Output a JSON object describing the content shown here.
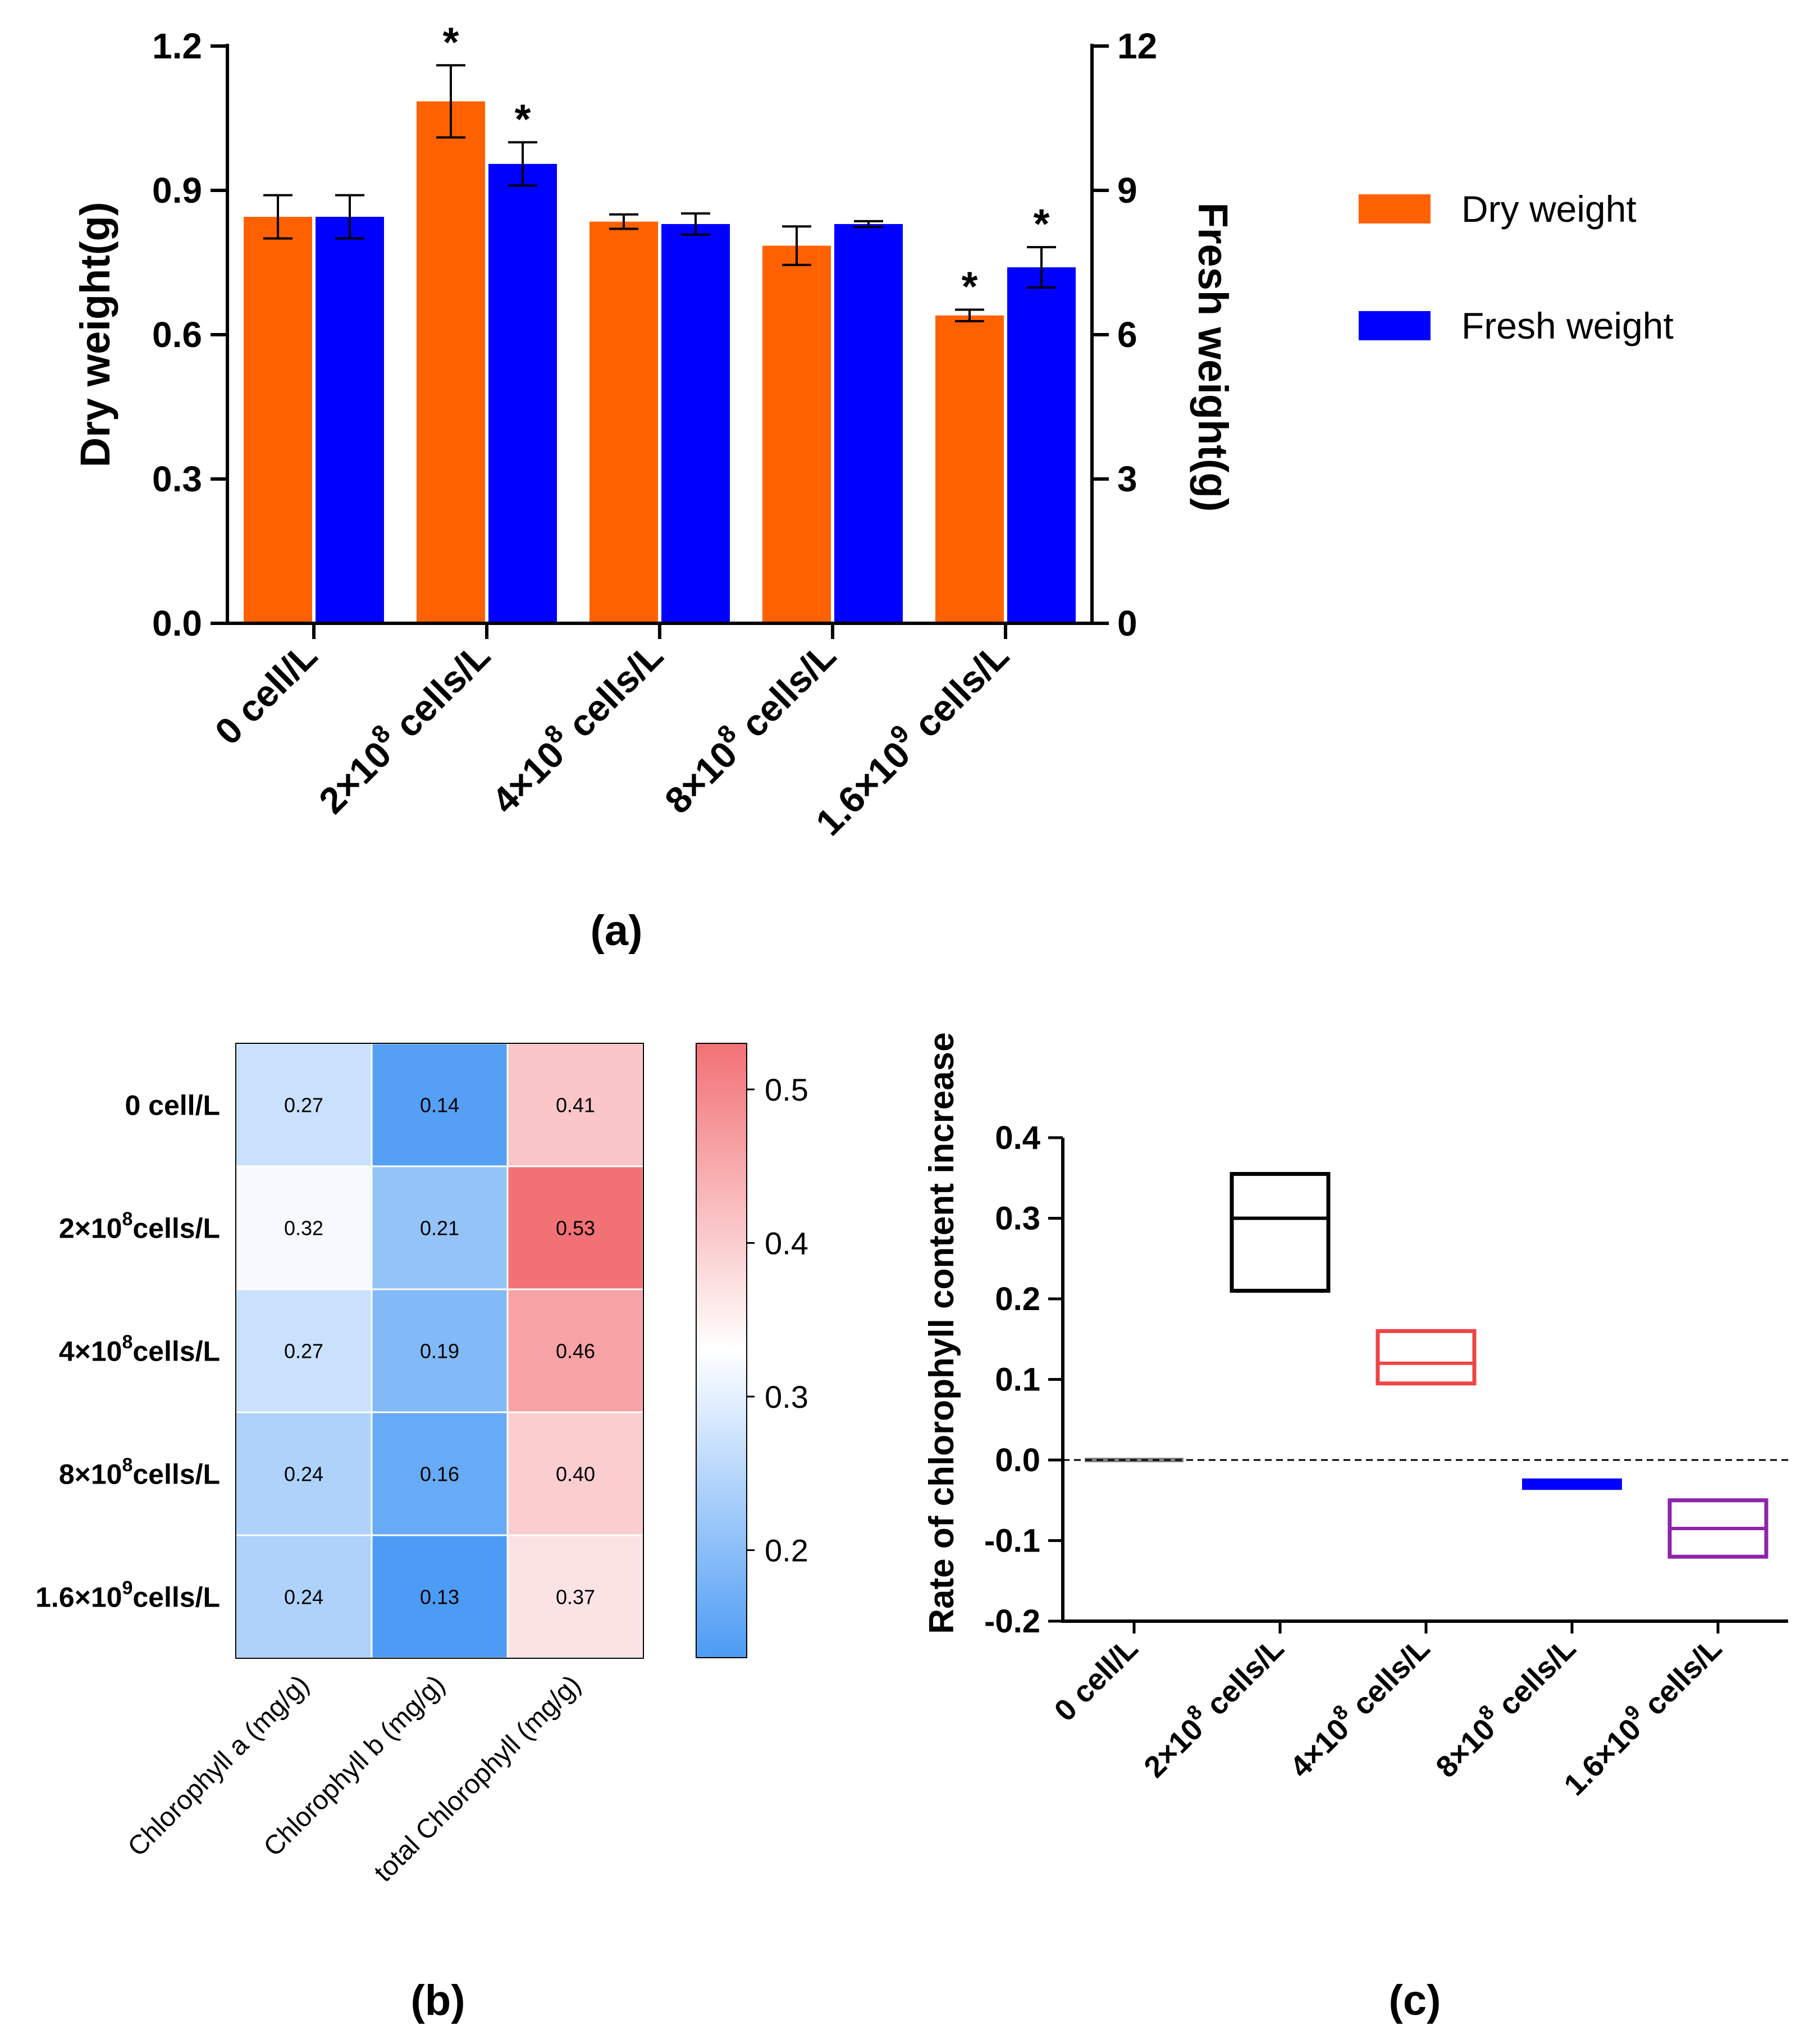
{
  "chart_data": [
    {
      "id": "a",
      "type": "bar",
      "panel_label": "(a)",
      "categories": [
        {
          "base": "0 cell/L",
          "sup": "",
          "tail": ""
        },
        {
          "base": "2×10",
          "sup": "8",
          "tail": " cells/L"
        },
        {
          "base": "4×10",
          "sup": "8",
          "tail": " cells/L"
        },
        {
          "base": "8×10",
          "sup": "8",
          "tail": " cells/L"
        },
        {
          "base": "1.6×10",
          "sup": "9",
          "tail": " cells/L"
        }
      ],
      "series": [
        {
          "name": "Dry weight",
          "axis": "left",
          "color": "#FF6100",
          "values": [
            0.845,
            1.085,
            0.835,
            0.785,
            0.64
          ],
          "errors": [
            0.045,
            0.075,
            0.015,
            0.04,
            0.012
          ],
          "significant": [
            false,
            true,
            false,
            false,
            true
          ]
        },
        {
          "name": "Fresh weight",
          "axis": "right",
          "color": "#0000FF",
          "values": [
            8.45,
            9.55,
            8.3,
            8.3,
            7.4
          ],
          "errors": [
            0.45,
            0.45,
            0.22,
            0.06,
            0.42
          ],
          "significant": [
            false,
            true,
            false,
            false,
            true
          ]
        }
      ],
      "ylabel": "Dry weight(g)",
      "ylabel_right": "Fresh weight(g)",
      "ylim": [
        0,
        1.2
      ],
      "ylim_right": [
        0,
        12
      ],
      "yticks": [
        "0.0",
        "0.3",
        "0.6",
        "0.9",
        "1.2"
      ],
      "yticks_right": [
        "0",
        "3",
        "6",
        "9",
        "12"
      ],
      "significance_marker": "*",
      "legend": "right"
    },
    {
      "id": "b",
      "type": "heatmap",
      "panel_label": "(b)",
      "rows": [
        {
          "base": "0 cell/L",
          "sup": "",
          "tail": ""
        },
        {
          "base": "2×10",
          "sup": "8",
          "tail": "cells/L"
        },
        {
          "base": "4×10",
          "sup": "8",
          "tail": "cells/L"
        },
        {
          "base": "8×10",
          "sup": "8",
          "tail": "cells/L"
        },
        {
          "base": "1.6×10",
          "sup": "9",
          "tail": "cells/L"
        }
      ],
      "columns": [
        "Chlorophyll a (mg/g)",
        "Chlorophyll b (mg/g)",
        "total Chlorophyll (mg/g)"
      ],
      "values": [
        [
          "0.27",
          "0.14",
          "0.41"
        ],
        [
          "0.32",
          "0.21",
          "0.53"
        ],
        [
          "0.27",
          "0.19",
          "0.46"
        ],
        [
          "0.24",
          "0.16",
          "0.40"
        ],
        [
          "0.24",
          "0.13",
          "0.37"
        ]
      ],
      "colorbar_range": [
        0.13,
        0.53
      ],
      "colorbar_ticks": [
        "0.2",
        "0.3",
        "0.4",
        "0.5"
      ],
      "colorscale": {
        "low": "#4C9BF4",
        "mid": "#FFFFFF",
        "high": "#F27175",
        "mid_value": 0.33
      }
    },
    {
      "id": "c",
      "type": "box",
      "panel_label": "(c)",
      "categories": [
        {
          "base": "0 cell/L",
          "sup": "",
          "tail": ""
        },
        {
          "base": "2×10",
          "sup": "8",
          "tail": " cells/L"
        },
        {
          "base": "4×10",
          "sup": "8",
          "tail": " cells/L"
        },
        {
          "base": "8×10",
          "sup": "8",
          "tail": " cells/L"
        },
        {
          "base": "1.6×10",
          "sup": "9",
          "tail": " cells/L"
        }
      ],
      "boxes": [
        {
          "low": 0.0,
          "median": 0.0,
          "high": 0.0,
          "color": "#808080"
        },
        {
          "low": 0.21,
          "median": 0.3,
          "high": 0.355,
          "color": "#000000"
        },
        {
          "low": 0.095,
          "median": 0.12,
          "high": 0.16,
          "color": "#EE4444"
        },
        {
          "low": -0.035,
          "median": -0.03,
          "high": -0.025,
          "color": "#0000FF"
        },
        {
          "low": -0.12,
          "median": -0.085,
          "high": -0.05,
          "color": "#8E24AA"
        }
      ],
      "ylabel": "Rate of chlorophyll content increase",
      "ylim": [
        -0.2,
        0.4
      ],
      "yticks": [
        "-0.2",
        "-0.1",
        "0.0",
        "0.1",
        "0.2",
        "0.3",
        "0.4"
      ],
      "reference_line": 0
    }
  ]
}
